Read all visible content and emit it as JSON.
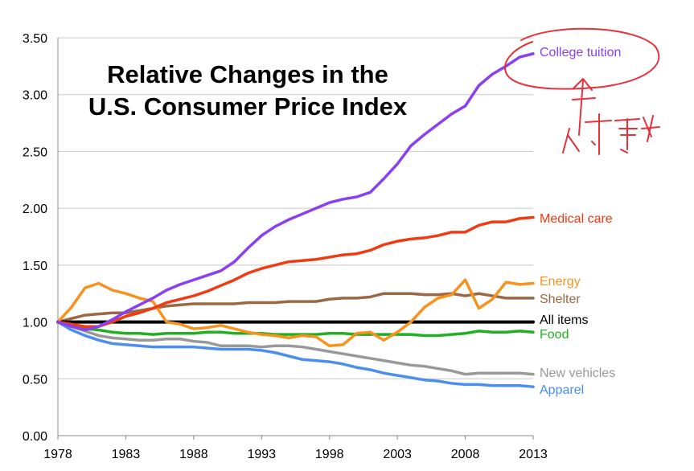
{
  "chart_data": {
    "type": "line",
    "title_lines": [
      "Relative Changes in the",
      "U.S. Consumer Price Index"
    ],
    "xlabel": "",
    "ylabel": "",
    "xlim": [
      1978,
      2013
    ],
    "ylim": [
      0,
      3.5
    ],
    "x_ticks": [
      "1978",
      "1983",
      "1988",
      "1993",
      "1998",
      "2003",
      "2008",
      "2013"
    ],
    "y_ticks": [
      "0.00",
      "0.50",
      "1.00",
      "1.50",
      "2.00",
      "2.50",
      "3.00",
      "3.50"
    ],
    "grid": true,
    "years": [
      1978,
      1979,
      1980,
      1981,
      1982,
      1983,
      1984,
      1985,
      1986,
      1987,
      1988,
      1989,
      1990,
      1991,
      1992,
      1993,
      1994,
      1995,
      1996,
      1997,
      1998,
      1999,
      2000,
      2001,
      2002,
      2003,
      2004,
      2005,
      2006,
      2007,
      2008,
      2009,
      2010,
      2011,
      2012,
      2013
    ],
    "series": [
      {
        "name": "College tuition",
        "color": "#8a3ff0",
        "values": [
          1.0,
          0.96,
          0.93,
          0.96,
          1.02,
          1.09,
          1.15,
          1.21,
          1.28,
          1.33,
          1.37,
          1.41,
          1.45,
          1.53,
          1.65,
          1.76,
          1.84,
          1.9,
          1.95,
          2.0,
          2.05,
          2.08,
          2.1,
          2.14,
          2.26,
          2.39,
          2.55,
          2.65,
          2.74,
          2.83,
          2.9,
          3.08,
          3.18,
          3.25,
          3.33,
          3.36
        ]
      },
      {
        "name": "Medical care",
        "color": "#f03a12",
        "values": [
          1.0,
          0.98,
          0.96,
          0.96,
          1.0,
          1.05,
          1.08,
          1.12,
          1.17,
          1.2,
          1.23,
          1.27,
          1.32,
          1.37,
          1.43,
          1.47,
          1.5,
          1.53,
          1.54,
          1.55,
          1.57,
          1.59,
          1.6,
          1.63,
          1.68,
          1.71,
          1.73,
          1.74,
          1.76,
          1.79,
          1.79,
          1.85,
          1.88,
          1.88,
          1.91,
          1.92
        ]
      },
      {
        "name": "Energy",
        "color": "#f7921e",
        "values": [
          1.0,
          1.13,
          1.3,
          1.34,
          1.28,
          1.25,
          1.21,
          1.18,
          1.0,
          0.98,
          0.94,
          0.95,
          0.97,
          0.94,
          0.91,
          0.89,
          0.88,
          0.86,
          0.88,
          0.87,
          0.79,
          0.8,
          0.9,
          0.91,
          0.84,
          0.91,
          1.0,
          1.13,
          1.21,
          1.24,
          1.37,
          1.12,
          1.2,
          1.35,
          1.33,
          1.34
        ]
      },
      {
        "name": "Shelter",
        "color": "#9b6744",
        "values": [
          1.0,
          1.03,
          1.06,
          1.07,
          1.08,
          1.08,
          1.1,
          1.12,
          1.14,
          1.15,
          1.16,
          1.16,
          1.16,
          1.16,
          1.17,
          1.17,
          1.17,
          1.18,
          1.18,
          1.18,
          1.2,
          1.21,
          1.21,
          1.22,
          1.25,
          1.25,
          1.25,
          1.24,
          1.24,
          1.25,
          1.23,
          1.25,
          1.23,
          1.21,
          1.21,
          1.21
        ]
      },
      {
        "name": "All items",
        "color": "#000000",
        "values": [
          1.0,
          1.0,
          1.0,
          1.0,
          1.0,
          1.0,
          1.0,
          1.0,
          1.0,
          1.0,
          1.0,
          1.0,
          1.0,
          1.0,
          1.0,
          1.0,
          1.0,
          1.0,
          1.0,
          1.0,
          1.0,
          1.0,
          1.0,
          1.0,
          1.0,
          1.0,
          1.0,
          1.0,
          1.0,
          1.0,
          1.0,
          1.0,
          1.0,
          1.0,
          1.0,
          1.0
        ]
      },
      {
        "name": "Food",
        "color": "#22b022",
        "values": [
          1.0,
          0.97,
          0.94,
          0.93,
          0.91,
          0.9,
          0.9,
          0.89,
          0.9,
          0.9,
          0.9,
          0.91,
          0.91,
          0.9,
          0.9,
          0.9,
          0.89,
          0.89,
          0.89,
          0.89,
          0.9,
          0.9,
          0.89,
          0.89,
          0.89,
          0.89,
          0.89,
          0.88,
          0.88,
          0.89,
          0.9,
          0.92,
          0.91,
          0.91,
          0.92,
          0.91
        ]
      },
      {
        "name": "New vehicles",
        "color": "#999999",
        "values": [
          1.0,
          0.96,
          0.92,
          0.88,
          0.86,
          0.85,
          0.84,
          0.84,
          0.85,
          0.85,
          0.83,
          0.82,
          0.79,
          0.79,
          0.79,
          0.78,
          0.79,
          0.79,
          0.78,
          0.76,
          0.74,
          0.72,
          0.7,
          0.68,
          0.66,
          0.64,
          0.62,
          0.61,
          0.59,
          0.57,
          0.54,
          0.55,
          0.55,
          0.55,
          0.55,
          0.54
        ]
      },
      {
        "name": "Apparel",
        "color": "#4a8ef0",
        "values": [
          1.0,
          0.93,
          0.88,
          0.84,
          0.81,
          0.8,
          0.79,
          0.78,
          0.78,
          0.78,
          0.78,
          0.77,
          0.76,
          0.76,
          0.76,
          0.75,
          0.73,
          0.7,
          0.67,
          0.66,
          0.65,
          0.63,
          0.6,
          0.58,
          0.55,
          0.53,
          0.51,
          0.49,
          0.48,
          0.46,
          0.45,
          0.45,
          0.44,
          0.44,
          0.44,
          0.43
        ]
      }
    ],
    "annotation": {
      "type": "handwritten",
      "color": "#e8303a",
      "circled_label": "College tuition"
    }
  }
}
